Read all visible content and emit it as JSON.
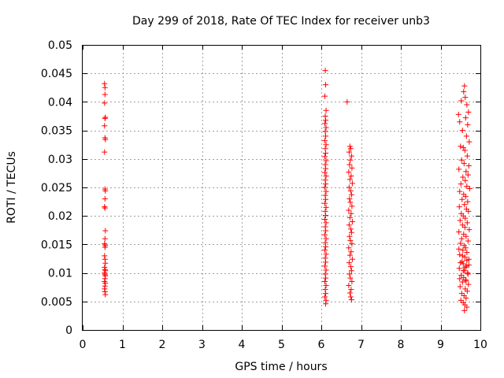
{
  "chart_data": {
    "type": "scatter",
    "title": "Day 299 of 2018, Rate Of TEC Index for receiver unb3",
    "xlabel": "GPS time / hours",
    "ylabel": "ROTI / TECUs",
    "xlim": [
      0,
      10
    ],
    "ylim": [
      0,
      0.05
    ],
    "x_ticks": [
      0,
      1,
      2,
      3,
      4,
      5,
      6,
      7,
      8,
      9,
      10
    ],
    "y_ticks": [
      0,
      0.005,
      0.01,
      0.015,
      0.02,
      0.025,
      0.03,
      0.035,
      0.04,
      0.045,
      0.05
    ],
    "x_tick_labels": [
      "0",
      "1",
      "2",
      "3",
      "4",
      "5",
      "6",
      "7",
      "8",
      "9",
      "10"
    ],
    "y_tick_labels": [
      "0",
      "0.005",
      "0.01",
      "0.015",
      "0.02",
      "0.025",
      "0.03",
      "0.035",
      "0.04",
      "0.045",
      "0.05"
    ],
    "grid": true,
    "marker": "+",
    "color": "#ff0000",
    "series": [
      {
        "name": "ROTI",
        "points": [
          [
            0.55,
            0.0432
          ],
          [
            0.56,
            0.0425
          ],
          [
            0.56,
            0.0413
          ],
          [
            0.55,
            0.0398
          ],
          [
            0.57,
            0.0373
          ],
          [
            0.56,
            0.0371
          ],
          [
            0.55,
            0.0358
          ],
          [
            0.56,
            0.0337
          ],
          [
            0.57,
            0.0334
          ],
          [
            0.55,
            0.0312
          ],
          [
            0.56,
            0.0247
          ],
          [
            0.57,
            0.0244
          ],
          [
            0.56,
            0.023
          ],
          [
            0.55,
            0.0216
          ],
          [
            0.56,
            0.0214
          ],
          [
            0.57,
            0.0174
          ],
          [
            0.56,
            0.016
          ],
          [
            0.55,
            0.0151
          ],
          [
            0.57,
            0.0148
          ],
          [
            0.56,
            0.0145
          ],
          [
            0.55,
            0.013
          ],
          [
            0.56,
            0.0124
          ],
          [
            0.57,
            0.0117
          ],
          [
            0.55,
            0.011
          ],
          [
            0.56,
            0.0106
          ],
          [
            0.57,
            0.0104
          ],
          [
            0.55,
            0.01
          ],
          [
            0.56,
            0.0097
          ],
          [
            0.57,
            0.0095
          ],
          [
            0.56,
            0.009
          ],
          [
            0.55,
            0.0085
          ],
          [
            0.57,
            0.0082
          ],
          [
            0.56,
            0.0077
          ],
          [
            0.55,
            0.0072
          ],
          [
            0.56,
            0.0067
          ],
          [
            0.57,
            0.0062
          ],
          [
            6.1,
            0.0455
          ],
          [
            6.11,
            0.043
          ],
          [
            6.09,
            0.041
          ],
          [
            6.12,
            0.0385
          ],
          [
            6.1,
            0.0375
          ],
          [
            6.11,
            0.0368
          ],
          [
            6.09,
            0.0362
          ],
          [
            6.12,
            0.0355
          ],
          [
            6.1,
            0.0348
          ],
          [
            6.11,
            0.034
          ],
          [
            6.09,
            0.0332
          ],
          [
            6.12,
            0.0325
          ],
          [
            6.1,
            0.0318
          ],
          [
            6.11,
            0.031
          ],
          [
            6.09,
            0.0304
          ],
          [
            6.12,
            0.0297
          ],
          [
            6.1,
            0.029
          ],
          [
            6.11,
            0.0283
          ],
          [
            6.09,
            0.0276
          ],
          [
            6.12,
            0.027
          ],
          [
            6.1,
            0.0263
          ],
          [
            6.11,
            0.0256
          ],
          [
            6.09,
            0.025
          ],
          [
            6.12,
            0.0243
          ],
          [
            6.1,
            0.0236
          ],
          [
            6.11,
            0.0229
          ],
          [
            6.09,
            0.0222
          ],
          [
            6.12,
            0.0215
          ],
          [
            6.1,
            0.0208
          ],
          [
            6.11,
            0.0201
          ],
          [
            6.09,
            0.0194
          ],
          [
            6.12,
            0.0188
          ],
          [
            6.1,
            0.0181
          ],
          [
            6.11,
            0.0174
          ],
          [
            6.09,
            0.0167
          ],
          [
            6.12,
            0.016
          ],
          [
            6.1,
            0.0153
          ],
          [
            6.11,
            0.0146
          ],
          [
            6.09,
            0.014
          ],
          [
            6.12,
            0.0133
          ],
          [
            6.1,
            0.0126
          ],
          [
            6.11,
            0.0119
          ],
          [
            6.09,
            0.0112
          ],
          [
            6.12,
            0.0105
          ],
          [
            6.1,
            0.0098
          ],
          [
            6.11,
            0.0091
          ],
          [
            6.09,
            0.0085
          ],
          [
            6.12,
            0.0078
          ],
          [
            6.1,
            0.0071
          ],
          [
            6.11,
            0.0064
          ],
          [
            6.09,
            0.0058
          ],
          [
            6.12,
            0.0052
          ],
          [
            6.11,
            0.0046
          ],
          [
            6.65,
            0.04
          ],
          [
            6.72,
            0.0322
          ],
          [
            6.74,
            0.0318
          ],
          [
            6.7,
            0.0312
          ],
          [
            6.76,
            0.0305
          ],
          [
            6.73,
            0.0298
          ],
          [
            6.71,
            0.029
          ],
          [
            6.77,
            0.0284
          ],
          [
            6.69,
            0.0277
          ],
          [
            6.75,
            0.027
          ],
          [
            6.72,
            0.0264
          ],
          [
            6.78,
            0.0257
          ],
          [
            6.7,
            0.025
          ],
          [
            6.74,
            0.0244
          ],
          [
            6.76,
            0.0237
          ],
          [
            6.71,
            0.023
          ],
          [
            6.73,
            0.0224
          ],
          [
            6.77,
            0.0217
          ],
          [
            6.69,
            0.021
          ],
          [
            6.75,
            0.0204
          ],
          [
            6.72,
            0.0197
          ],
          [
            6.78,
            0.019
          ],
          [
            6.7,
            0.0184
          ],
          [
            6.74,
            0.0177
          ],
          [
            6.76,
            0.0171
          ],
          [
            6.71,
            0.0164
          ],
          [
            6.73,
            0.0157
          ],
          [
            6.77,
            0.0151
          ],
          [
            6.69,
            0.0144
          ],
          [
            6.75,
            0.0137
          ],
          [
            6.72,
            0.0131
          ],
          [
            6.78,
            0.0124
          ],
          [
            6.7,
            0.0118
          ],
          [
            6.74,
            0.0111
          ],
          [
            6.76,
            0.0104
          ],
          [
            6.71,
            0.0098
          ],
          [
            6.73,
            0.0091
          ],
          [
            6.77,
            0.0085
          ],
          [
            6.69,
            0.0078
          ],
          [
            6.75,
            0.0071
          ],
          [
            6.72,
            0.0065
          ],
          [
            6.74,
            0.0058
          ],
          [
            6.76,
            0.0053
          ],
          [
            9.52,
            0.0402
          ],
          [
            9.45,
            0.0378
          ],
          [
            9.48,
            0.0365
          ],
          [
            9.58,
            0.0418
          ],
          [
            9.62,
            0.0408
          ],
          [
            9.6,
            0.0428
          ],
          [
            9.66,
            0.0395
          ],
          [
            9.7,
            0.0382
          ],
          [
            9.63,
            0.0372
          ],
          [
            9.68,
            0.036
          ],
          [
            9.55,
            0.035
          ],
          [
            9.65,
            0.034
          ],
          [
            9.72,
            0.033
          ],
          [
            9.5,
            0.0322
          ],
          [
            9.57,
            0.032
          ],
          [
            9.61,
            0.0315
          ],
          [
            9.67,
            0.0305
          ],
          [
            9.53,
            0.0298
          ],
          [
            9.59,
            0.0292
          ],
          [
            9.71,
            0.0288
          ],
          [
            9.46,
            0.0282
          ],
          [
            9.64,
            0.0278
          ],
          [
            9.69,
            0.0272
          ],
          [
            9.56,
            0.0268
          ],
          [
            9.62,
            0.0262
          ],
          [
            9.51,
            0.0256
          ],
          [
            9.66,
            0.0252
          ],
          [
            9.73,
            0.0248
          ],
          [
            9.48,
            0.0243
          ],
          [
            9.58,
            0.0238
          ],
          [
            9.63,
            0.0234
          ],
          [
            9.54,
            0.0229
          ],
          [
            9.68,
            0.0225
          ],
          [
            9.6,
            0.022
          ],
          [
            9.47,
            0.0216
          ],
          [
            9.65,
            0.0212
          ],
          [
            9.7,
            0.0208
          ],
          [
            9.52,
            0.0204
          ],
          [
            9.57,
            0.02
          ],
          [
            9.62,
            0.0196
          ],
          [
            9.49,
            0.0192
          ],
          [
            9.67,
            0.0188
          ],
          [
            9.55,
            0.0184
          ],
          [
            9.61,
            0.018
          ],
          [
            9.72,
            0.0176
          ],
          [
            9.46,
            0.0172
          ],
          [
            9.58,
            0.0168
          ],
          [
            9.64,
            0.0164
          ],
          [
            9.53,
            0.016
          ],
          [
            9.69,
            0.0156
          ],
          [
            9.5,
            0.0152
          ],
          [
            9.59,
            0.0148
          ],
          [
            9.63,
            0.0144
          ],
          [
            9.56,
            0.014
          ],
          [
            9.66,
            0.0136
          ],
          [
            9.48,
            0.0132
          ],
          [
            9.61,
            0.0128
          ],
          [
            9.71,
            0.0124
          ],
          [
            9.54,
            0.012
          ],
          [
            9.57,
            0.0116
          ],
          [
            9.65,
            0.0112
          ],
          [
            9.47,
            0.0108
          ],
          [
            9.6,
            0.0104
          ],
          [
            9.68,
            0.01
          ],
          [
            9.52,
            0.0096
          ],
          [
            9.58,
            0.0092
          ],
          [
            9.63,
            0.0088
          ],
          [
            9.55,
            0.0084
          ],
          [
            9.7,
            0.008
          ],
          [
            9.49,
            0.0076
          ],
          [
            9.62,
            0.0072
          ],
          [
            9.67,
            0.0068
          ],
          [
            9.53,
            0.0064
          ],
          [
            9.59,
            0.006
          ],
          [
            9.64,
            0.0056
          ],
          [
            9.51,
            0.0052
          ],
          [
            9.57,
            0.0048
          ],
          [
            9.61,
            0.0044
          ],
          [
            9.66,
            0.004
          ],
          [
            9.6,
            0.0034
          ],
          [
            9.46,
            0.0142
          ],
          [
            9.5,
            0.0118
          ],
          [
            9.55,
            0.013
          ],
          [
            9.62,
            0.011
          ],
          [
            9.66,
            0.0122
          ],
          [
            9.69,
            0.0098
          ],
          [
            9.48,
            0.009
          ],
          [
            9.57,
            0.0104
          ],
          [
            9.64,
            0.0086
          ],
          [
            9.71,
            0.0114
          ]
        ]
      }
    ]
  }
}
